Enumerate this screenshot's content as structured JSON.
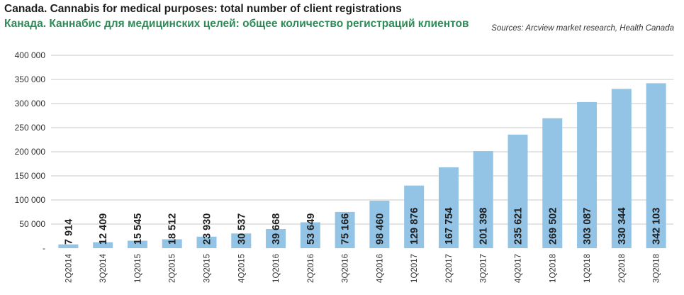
{
  "header": {
    "title_en": "Canada. Cannabis for medical purposes: total number of client registrations",
    "title_ru": "Канада. Каннабис для медицинских целей: общее количество регистраций клиентов",
    "sources": "Sources: Arcview market research, Health Canada"
  },
  "colors": {
    "bar": "#93c4e6",
    "grid": "#c8c8c8",
    "title_ru": "#2e8b57",
    "text": "#1f1f1f"
  },
  "chart_data": {
    "type": "bar",
    "title": "Canada. Cannabis for medical purposes: total number of client registrations",
    "subtitle": "Канада. Каннабис для медицинских целей: общее количество регистраций клиентов",
    "xlabel": "",
    "ylabel": "",
    "ylim": [
      0,
      400000
    ],
    "yticks": [
      0,
      50000,
      100000,
      150000,
      200000,
      250000,
      300000,
      350000,
      400000
    ],
    "ytick_labels": [
      "-",
      "50 000",
      "100 000",
      "150 000",
      "200 000",
      "250 000",
      "300 000",
      "350 000",
      "400 000"
    ],
    "grid": true,
    "legend": "none",
    "categories": [
      "2Q2014",
      "3Q2014",
      "1Q2015",
      "2Q2015",
      "3Q2015",
      "4Q2015",
      "1Q2016",
      "2Q2016",
      "3Q2016",
      "4Q2016",
      "1Q2017",
      "2Q2017",
      "3Q2017",
      "4Q2017",
      "1Q2018",
      "1Q2018",
      "2Q2018",
      "3Q2018"
    ],
    "values": [
      7914,
      12409,
      15545,
      18512,
      23930,
      30537,
      39668,
      53649,
      75166,
      98460,
      129876,
      167754,
      201398,
      235621,
      269502,
      303087,
      330344,
      342103
    ],
    "value_labels": [
      "7 914",
      "12 409",
      "15 545",
      "18 512",
      "23 930",
      "30 537",
      "39 668",
      "53 649",
      "75 166",
      "98 460",
      "129 876",
      "167 754",
      "201 398",
      "235 621",
      "269 502",
      "303 087",
      "330 344",
      "342 103"
    ]
  }
}
